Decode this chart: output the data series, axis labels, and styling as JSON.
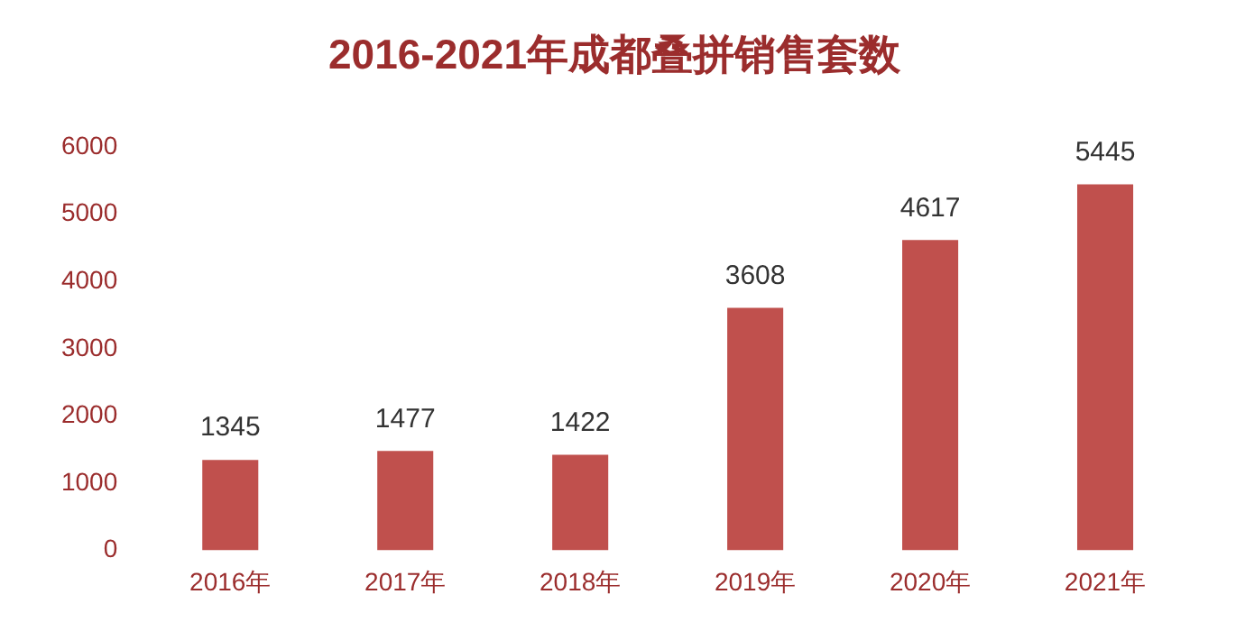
{
  "chart_data": {
    "type": "bar",
    "title": "2016-2021年成都叠拼销售套数",
    "categories": [
      "2016年",
      "2017年",
      "2018年",
      "2019年",
      "2020年",
      "2021年"
    ],
    "values": [
      1345,
      1477,
      1422,
      3608,
      4617,
      5445
    ],
    "color": "#c0504d",
    "ylim": [
      0,
      6000
    ],
    "yticks": [
      0,
      1000,
      2000,
      3000,
      4000,
      5000,
      6000
    ],
    "grid": false,
    "data_labels": true
  }
}
